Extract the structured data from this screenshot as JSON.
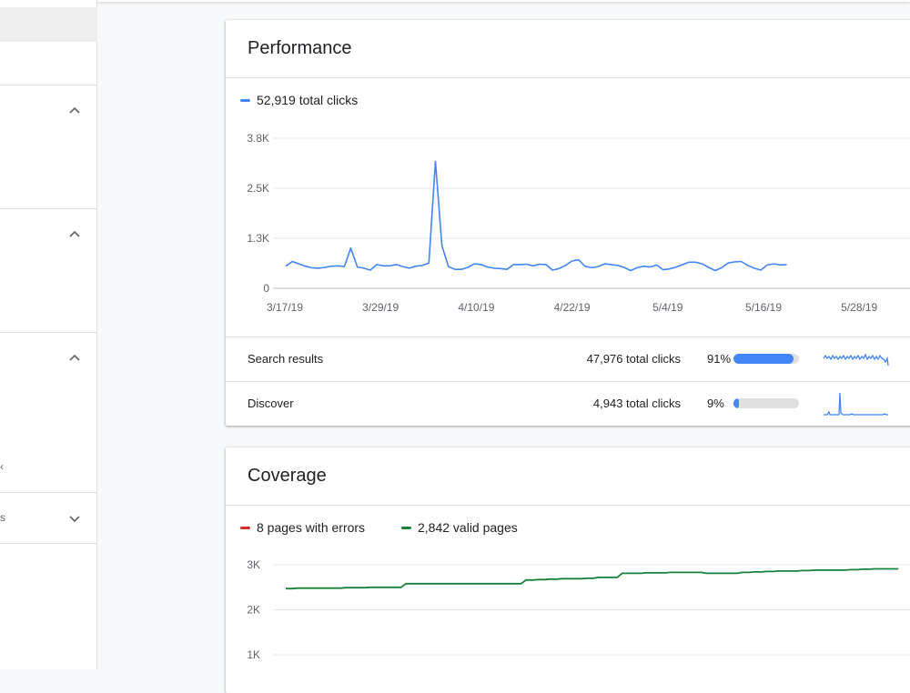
{
  "sidebar": {
    "fragments": [
      {
        "text": "‹"
      },
      {
        "text": "s"
      }
    ],
    "icons": [
      "chevron-up-icon",
      "chevron-up-icon",
      "chevron-up-icon",
      "chevron-down-icon"
    ]
  },
  "performance": {
    "title": "Performance",
    "legend": {
      "label": "52,919 total clicks",
      "color": "#4285f4"
    },
    "rows": [
      {
        "name": "Search results",
        "clicks": "47,976 total clicks",
        "percent_label": "91%",
        "share": 0.91
      },
      {
        "name": "Discover",
        "clicks": "4,943 total clicks",
        "percent_label": "9%",
        "share": 0.09
      }
    ]
  },
  "coverage": {
    "title": "Coverage",
    "legend": [
      {
        "label": "8 pages with errors",
        "color": "#d93025"
      },
      {
        "label": "2,842 valid pages",
        "color": "#188038"
      }
    ]
  },
  "chart_data": [
    {
      "type": "line",
      "y_ticks": [
        "3.8K",
        "2.5K",
        "1.3K",
        "0"
      ],
      "x_ticks": [
        "3/17/19",
        "3/29/19",
        "4/10/19",
        "4/22/19",
        "5/4/19",
        "5/16/19",
        "5/28/19"
      ],
      "ylim": [
        0,
        3800
      ],
      "grid": true,
      "series": [
        {
          "name": "52,919 total clicks",
          "color": "#4285f4",
          "values": [
            560,
            680,
            620,
            560,
            520,
            510,
            530,
            560,
            570,
            550,
            1020,
            540,
            510,
            460,
            600,
            570,
            570,
            600,
            550,
            510,
            560,
            580,
            640,
            3210,
            1080,
            550,
            480,
            480,
            530,
            620,
            600,
            540,
            510,
            500,
            480,
            600,
            600,
            610,
            570,
            610,
            600,
            460,
            500,
            580,
            690,
            720,
            560,
            520,
            550,
            620,
            600,
            580,
            530,
            450,
            520,
            560,
            540,
            590,
            470,
            490,
            540,
            600,
            660,
            660,
            620,
            530,
            450,
            520,
            640,
            670,
            680,
            580,
            510,
            460,
            590,
            620,
            590,
            600
          ]
        }
      ]
    },
    {
      "type": "line",
      "y_ticks": [
        "3K",
        "2K",
        "1K"
      ],
      "grid": true,
      "series": [
        {
          "name": "2,842 valid pages",
          "color": "#188038",
          "values": [
            2470,
            2480,
            2480,
            2480,
            2480,
            2490,
            2490,
            2500,
            2500,
            2500,
            2580,
            2580,
            2580,
            2580,
            2580,
            2580,
            2580,
            2580,
            2580,
            2580,
            2660,
            2670,
            2680,
            2690,
            2690,
            2700,
            2720,
            2720,
            2810,
            2810,
            2820,
            2820,
            2830,
            2830,
            2830,
            2810,
            2810,
            2810,
            2830,
            2840,
            2850,
            2860,
            2860,
            2870,
            2880,
            2880,
            2880,
            2890,
            2900,
            2910,
            2910,
            2910
          ]
        }
      ]
    }
  ]
}
